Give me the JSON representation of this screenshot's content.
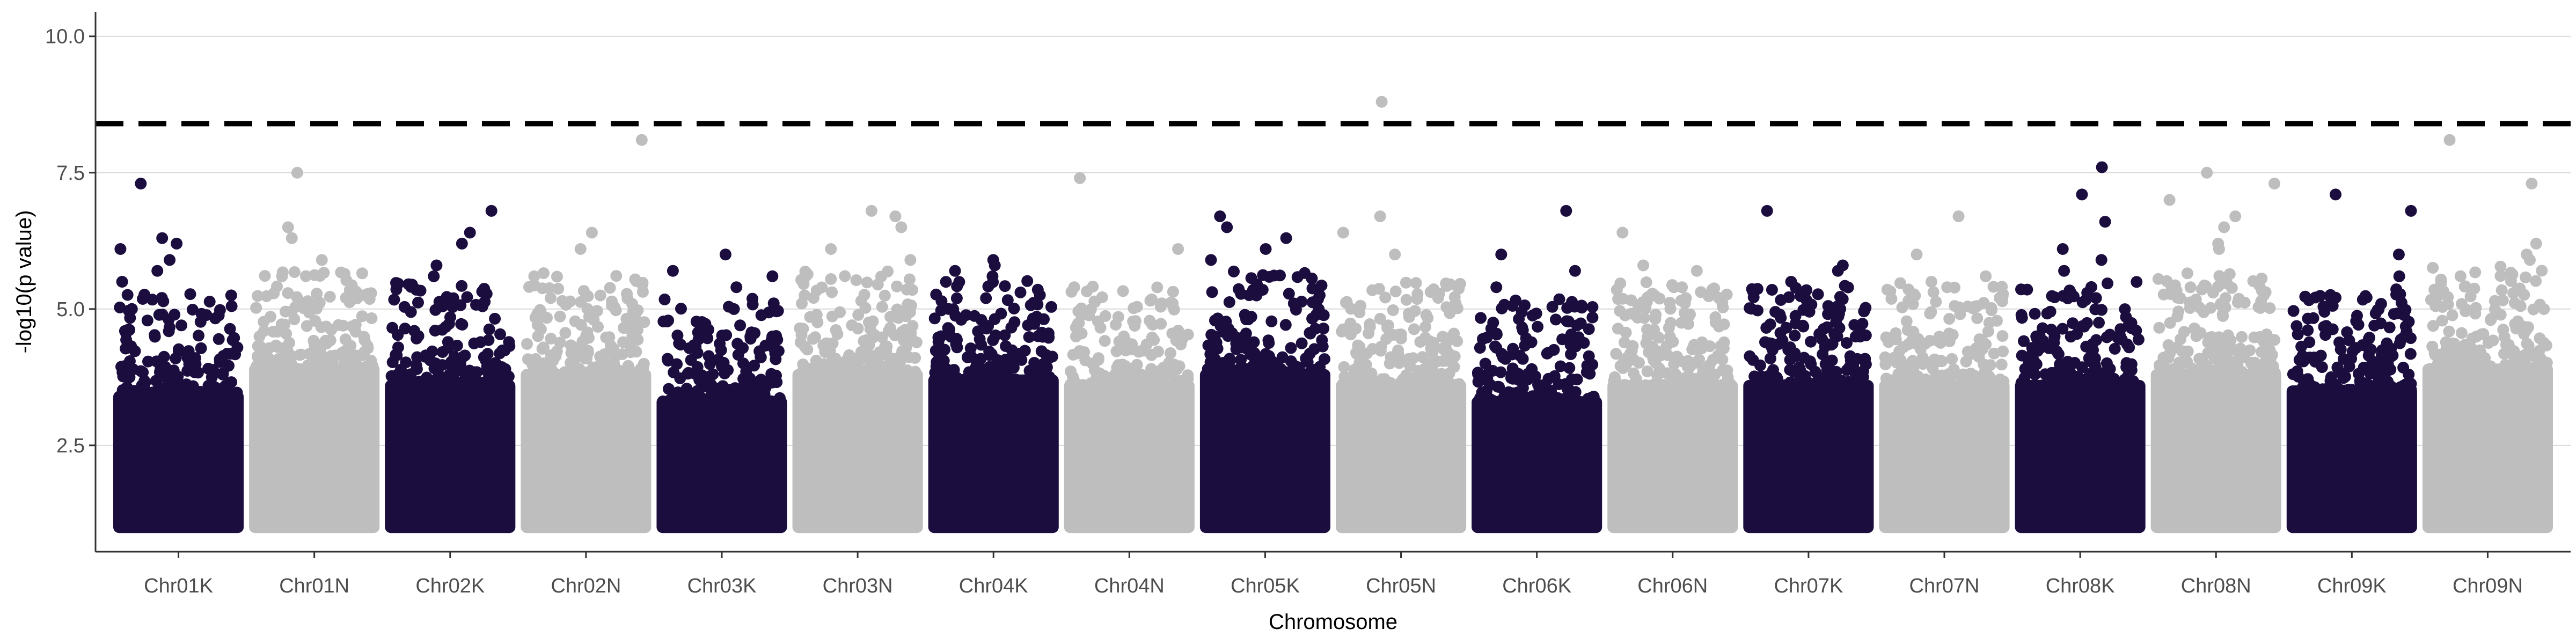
{
  "chart_data": {
    "type": "scatter",
    "title": "",
    "xlabel": "Chromosome",
    "ylabel": "-log10(p value)",
    "ylim": [
      0.55,
      10.45
    ],
    "yticks": [
      2.5,
      5.0,
      7.5,
      10.0
    ],
    "ytick_labels": [
      "2.5",
      "5.0",
      "7.5",
      "10.0"
    ],
    "grid": "horizontal major lines",
    "threshold": 8.4,
    "threshold_style": "dashed",
    "colors": {
      "odd": "#1c0d3f",
      "even": "#bebebe",
      "threshold": "#000000",
      "grid": "#d9d9d9"
    },
    "baseline": 1.0,
    "chromosomes": [
      {
        "name": "Chr01K",
        "color": "odd",
        "typical_max": 4.4,
        "top_points": [
          7.3,
          6.3,
          6.2,
          6.1,
          5.9,
          5.7,
          5.5
        ]
      },
      {
        "name": "Chr01N",
        "color": "even",
        "typical_max": 4.9,
        "top_points": [
          7.5,
          6.5,
          6.3,
          5.9,
          5.6
        ]
      },
      {
        "name": "Chr02K",
        "color": "odd",
        "typical_max": 4.6,
        "top_points": [
          6.8,
          6.4,
          6.2,
          5.8,
          5.6
        ]
      },
      {
        "name": "Chr02N",
        "color": "even",
        "typical_max": 4.8,
        "top_points": [
          8.1,
          6.4,
          6.1,
          5.6
        ]
      },
      {
        "name": "Chr03K",
        "color": "odd",
        "typical_max": 4.3,
        "top_points": [
          6.0,
          5.7,
          5.6,
          5.4
        ]
      },
      {
        "name": "Chr03N",
        "color": "even",
        "typical_max": 4.8,
        "top_points": [
          6.8,
          6.7,
          6.5,
          6.1,
          5.9
        ]
      },
      {
        "name": "Chr04K",
        "color": "odd",
        "typical_max": 4.7,
        "top_points": [
          5.9,
          5.8,
          5.7,
          5.6
        ]
      },
      {
        "name": "Chr04N",
        "color": "even",
        "typical_max": 4.6,
        "top_points": [
          7.4,
          6.1,
          5.4
        ]
      },
      {
        "name": "Chr05K",
        "color": "odd",
        "typical_max": 4.8,
        "top_points": [
          6.7,
          6.5,
          6.3,
          6.1,
          5.9
        ]
      },
      {
        "name": "Chr05N",
        "color": "even",
        "typical_max": 4.6,
        "top_points": [
          8.8,
          6.7,
          6.4,
          6.0
        ]
      },
      {
        "name": "Chr06K",
        "color": "odd",
        "typical_max": 4.3,
        "top_points": [
          6.8,
          6.0,
          5.7,
          5.4
        ]
      },
      {
        "name": "Chr06N",
        "color": "even",
        "typical_max": 4.6,
        "top_points": [
          6.4,
          5.8,
          5.7,
          5.4
        ]
      },
      {
        "name": "Chr07K",
        "color": "odd",
        "typical_max": 4.6,
        "top_points": [
          6.8,
          5.8,
          5.7,
          5.5
        ]
      },
      {
        "name": "Chr07N",
        "color": "even",
        "typical_max": 4.6,
        "top_points": [
          6.7,
          6.0,
          5.6,
          5.4
        ]
      },
      {
        "name": "Chr08K",
        "color": "odd",
        "typical_max": 4.6,
        "top_points": [
          7.6,
          7.1,
          6.6,
          6.1,
          5.9,
          5.7
        ]
      },
      {
        "name": "Chr08N",
        "color": "even",
        "typical_max": 4.8,
        "top_points": [
          7.5,
          7.3,
          7.0,
          6.7,
          6.5,
          6.2,
          6.1
        ]
      },
      {
        "name": "Chr09K",
        "color": "odd",
        "typical_max": 4.5,
        "top_points": [
          7.1,
          6.8,
          6.0,
          5.6
        ]
      },
      {
        "name": "Chr09N",
        "color": "even",
        "typical_max": 4.9,
        "top_points": [
          8.1,
          7.3,
          6.2,
          6.0,
          5.9
        ]
      }
    ]
  }
}
